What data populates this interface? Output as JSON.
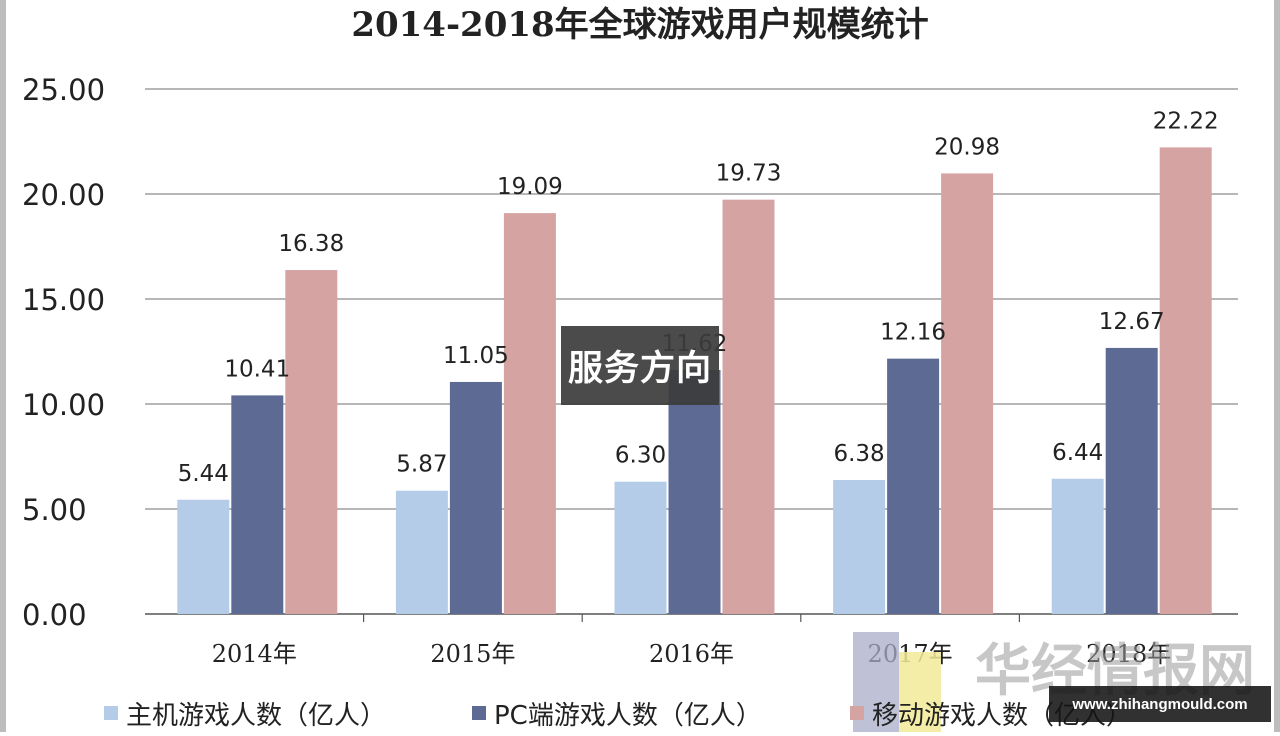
{
  "chart_data": {
    "type": "bar",
    "title": "2014-2018年全球游戏用户规模统计",
    "categories": [
      "2014年",
      "2015年",
      "2016年",
      "2017年",
      "2018年"
    ],
    "series": [
      {
        "name": "主机游戏人数（亿人）",
        "color": "#b5cce8",
        "values": [
          5.44,
          5.87,
          6.3,
          6.38,
          6.44
        ]
      },
      {
        "name": "PC端游戏人数（亿人）",
        "color": "#5d6b94",
        "values": [
          10.41,
          11.05,
          11.62,
          12.16,
          12.67
        ]
      },
      {
        "name": "移动游戏人数（亿人）",
        "color": "#d6a3a3",
        "values": [
          16.38,
          19.09,
          19.73,
          20.98,
          22.22
        ]
      }
    ],
    "yticks": [
      "0.00",
      "5.00",
      "10.00",
      "15.00",
      "20.00",
      "25.00"
    ],
    "ylim": [
      0,
      25
    ],
    "grid": true,
    "legend_position": "bottom"
  },
  "overlay": {
    "badge_text": "服务方向",
    "watermark_text": "华经情报网",
    "site_url": "www.zhihangmould.com"
  }
}
